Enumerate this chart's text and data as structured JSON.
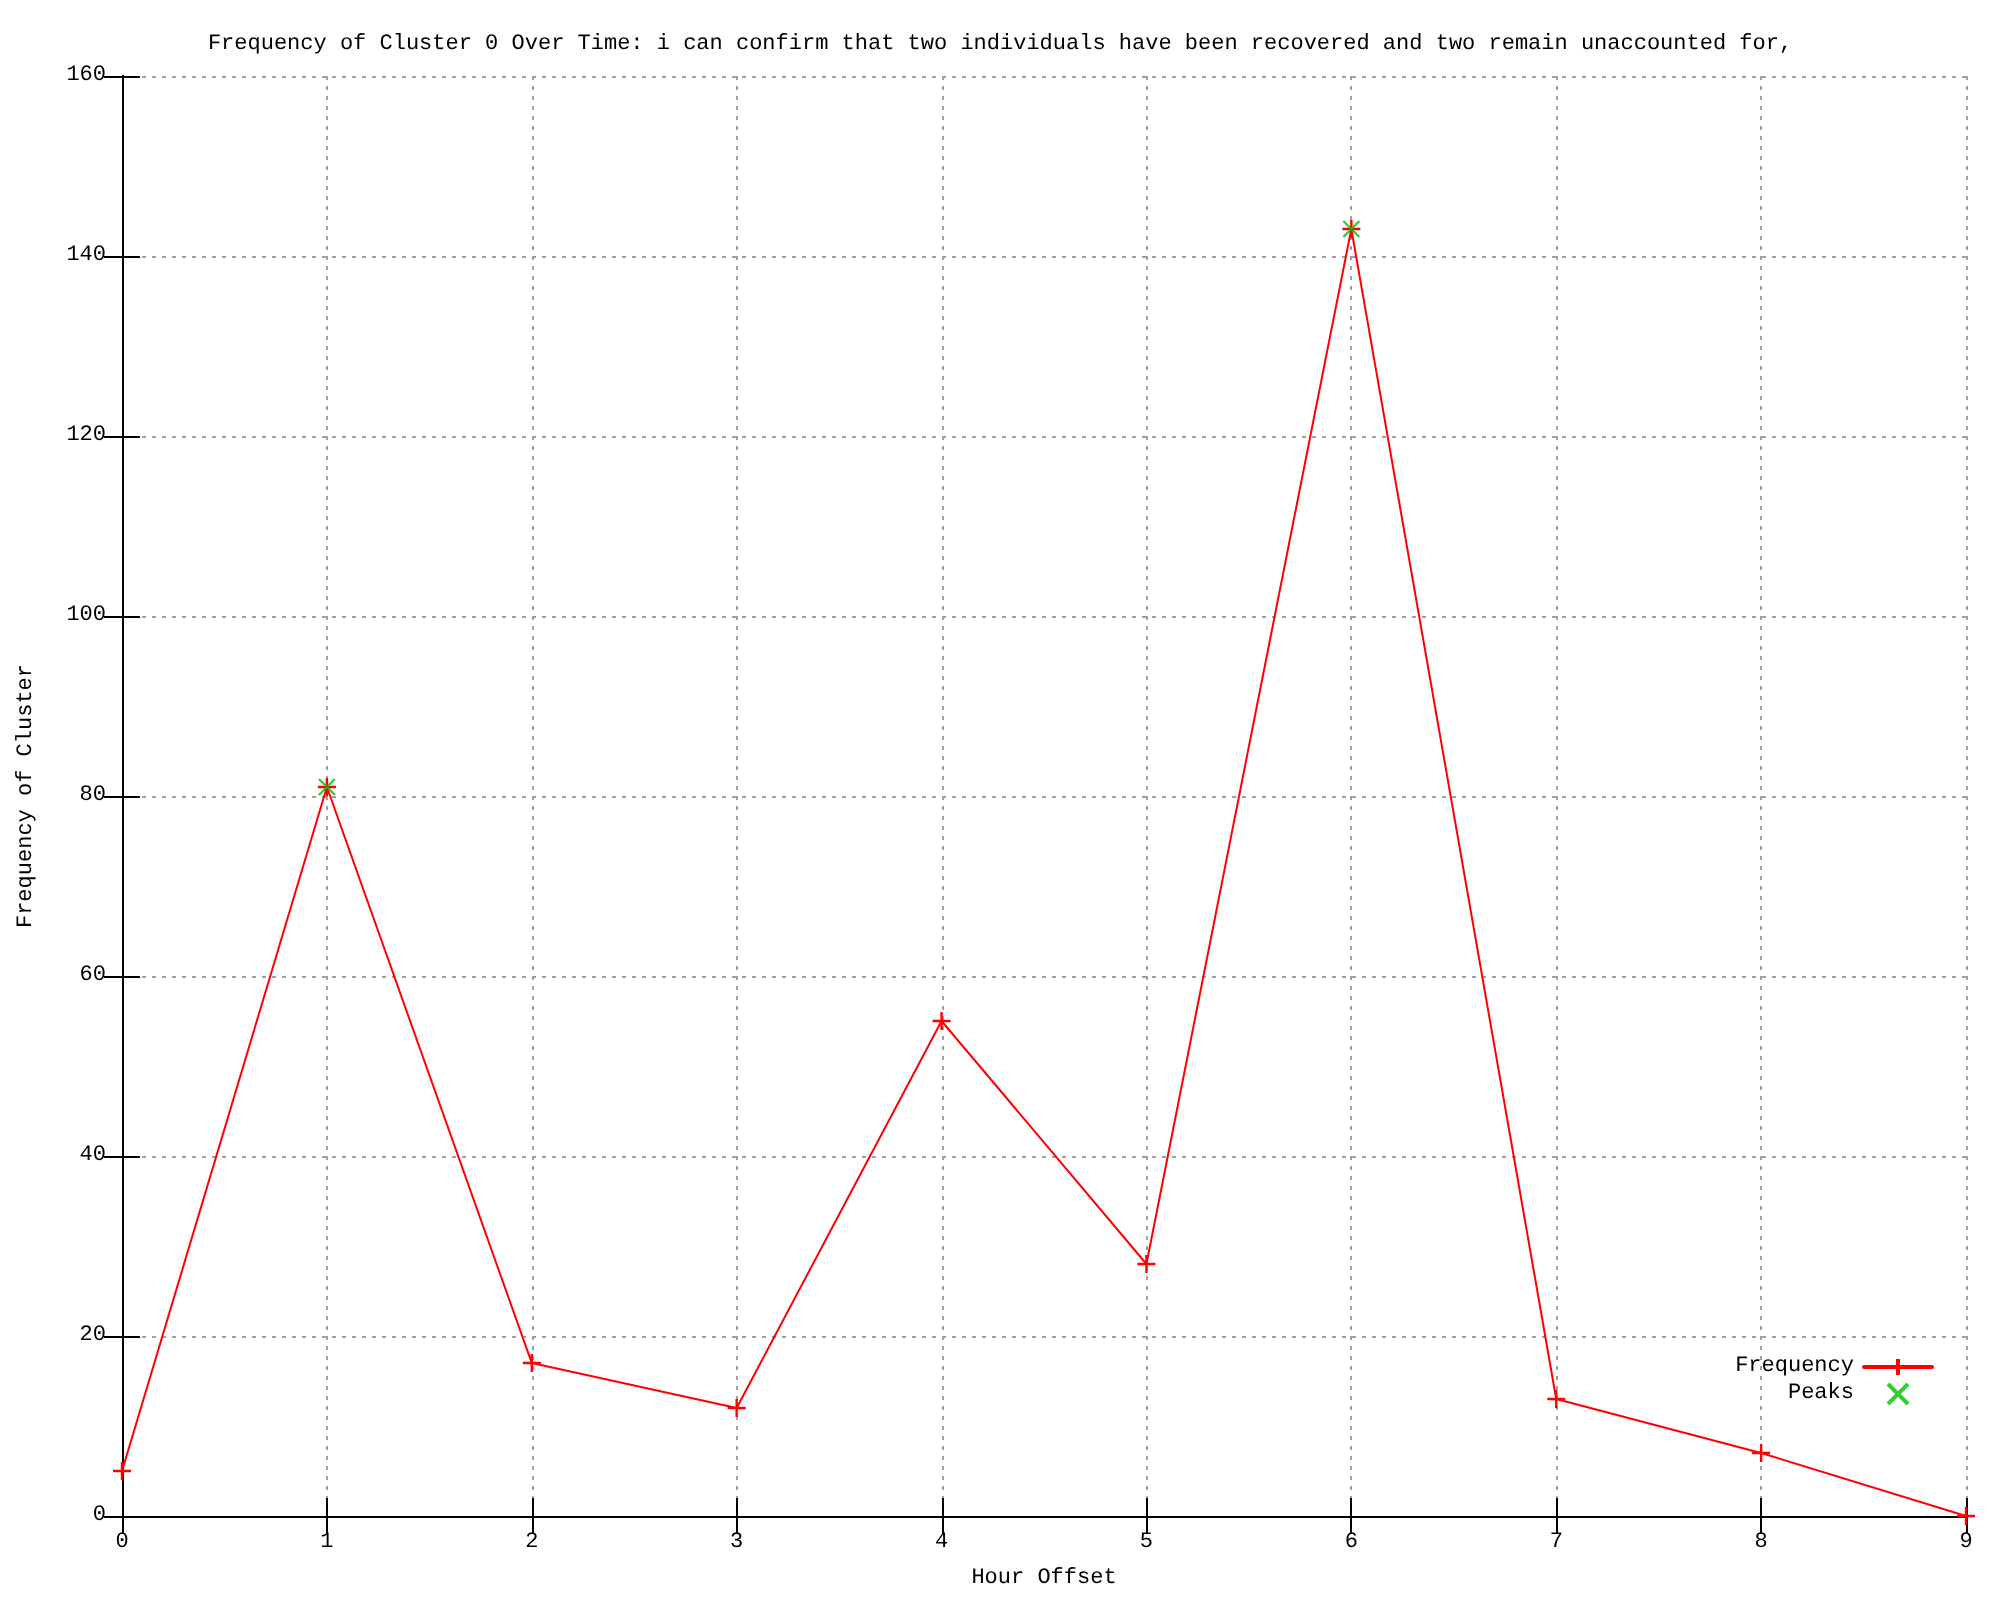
{
  "chart_data": {
    "type": "line",
    "title": "Frequency of Cluster 0 Over Time: i can confirm that two individuals have been recovered and two remain unaccounted for,",
    "xlabel": "Hour Offset",
    "ylabel": "Frequency of Cluster",
    "x": [
      0,
      1,
      2,
      3,
      4,
      5,
      6,
      7,
      8,
      9
    ],
    "series": [
      {
        "name": "Frequency",
        "color": "#ff0000",
        "values": [
          5,
          81,
          17,
          12,
          55,
          28,
          143,
          13,
          7,
          0
        ]
      },
      {
        "name": "Peaks",
        "type": "scatter",
        "color": "#00c000",
        "x": [
          1,
          6
        ],
        "values": [
          81,
          143
        ]
      }
    ],
    "xlim": [
      0,
      9
    ],
    "xticks": [
      0,
      1,
      2,
      3,
      4,
      5,
      6,
      7,
      8,
      9
    ],
    "ylim": [
      0,
      160
    ],
    "yticks": [
      0,
      20,
      40,
      60,
      80,
      100,
      120,
      140,
      160
    ],
    "grid": true,
    "legend": "bottom right",
    "marker": "cross",
    "line_style": "solid"
  }
}
